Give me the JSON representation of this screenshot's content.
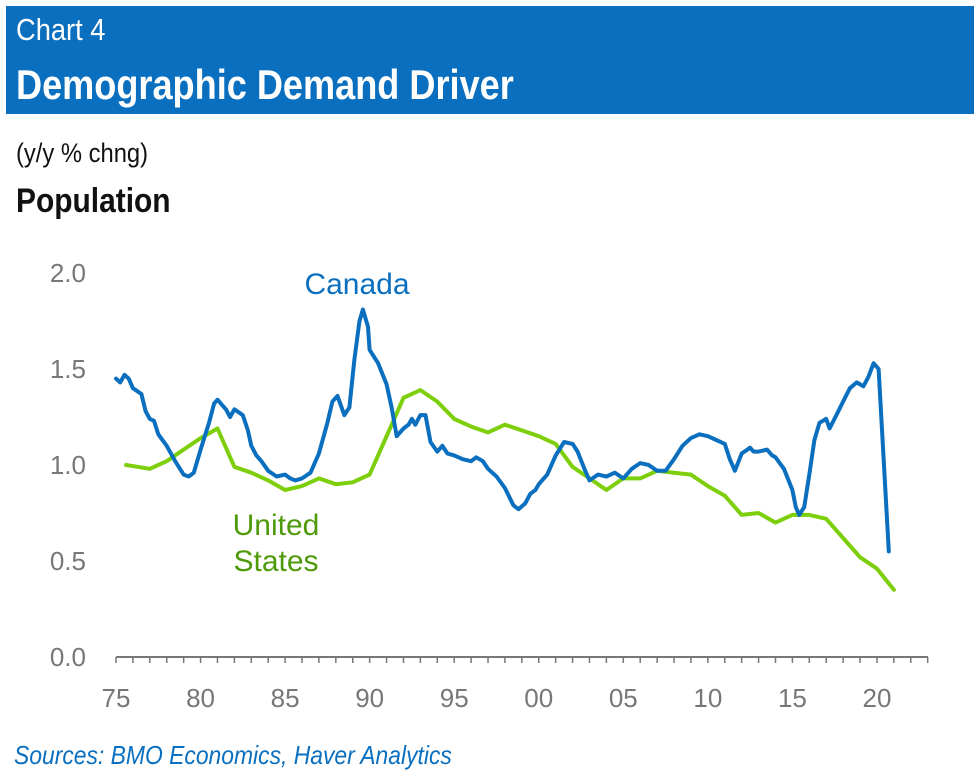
{
  "header": {
    "chart_number": "Chart 4",
    "title": "Demographic Demand Driver"
  },
  "units": "(y/y % chng)",
  "subtitle": "Population",
  "sources": "Sources: BMO Economics, Haver Analytics",
  "colors": {
    "header_bg": "#0a6fbf",
    "canada": "#0a6fbf",
    "united_states": "#7ccf0a",
    "us_label": "#4f9a0a"
  },
  "chart_data": {
    "type": "line",
    "title": "Population",
    "ylabel": "(y/y % chng)",
    "ylim": [
      0,
      2.0
    ],
    "xlim": [
      1975,
      2023
    ],
    "yticks": [
      "0.0",
      "0.5",
      "1.0",
      "1.5",
      "2.0"
    ],
    "xticks": [
      "75",
      "80",
      "85",
      "90",
      "95",
      "00",
      "05",
      "10",
      "15",
      "20"
    ],
    "xtick_years": [
      1975,
      1980,
      1985,
      1990,
      1995,
      2000,
      2005,
      2010,
      2015,
      2020
    ],
    "grid": false,
    "series": [
      {
        "name": "Canada",
        "label_lines": [
          "Canada"
        ],
        "x": [
          1975.0,
          1975.25,
          1975.5,
          1975.75,
          1976,
          1976.5,
          1976.75,
          1977,
          1977.25,
          1977.5,
          1978,
          1978.5,
          1979,
          1979.3,
          1979.6,
          1980,
          1980.5,
          1980.8,
          1981,
          1981.5,
          1981.75,
          1982,
          1982.5,
          1982.8,
          1983,
          1983.3,
          1983.6,
          1984,
          1984.5,
          1985,
          1985.3,
          1985.6,
          1986,
          1986.5,
          1987,
          1987.5,
          1987.8,
          1988.1,
          1988.5,
          1988.8,
          1989.1,
          1989.4,
          1989.6,
          1989.9,
          1990,
          1990.5,
          1991,
          1991.3,
          1991.6,
          1992,
          1992.3,
          1992.5,
          1992.7,
          1993,
          1993.3,
          1993.6,
          1994,
          1994.3,
          1994.6,
          1995,
          1995.5,
          1996,
          1996.3,
          1996.7,
          1997,
          1997.5,
          1998,
          1998.5,
          1998.8,
          1999.2,
          1999.5,
          1999.8,
          2000,
          2000.5,
          2001,
          2001.5,
          2002,
          2002.3,
          2002.7,
          2003,
          2003.5,
          2004,
          2004.5,
          2005,
          2005.5,
          2006,
          2006.5,
          2007,
          2007.5,
          2008,
          2008.5,
          2009,
          2009.5,
          2010,
          2010.5,
          2011,
          2011.3,
          2011.6,
          2012,
          2012.5,
          2012.7,
          2013,
          2013.5,
          2013.8,
          2014,
          2014.5,
          2015,
          2015.2,
          2015.4,
          2015.7,
          2016,
          2016.3,
          2016.6,
          2017,
          2017.2,
          2017.6,
          2018,
          2018.4,
          2018.8,
          2019.2,
          2019.5,
          2019.8,
          2020.1,
          2020.7
        ],
        "y": [
          1.45,
          1.43,
          1.47,
          1.45,
          1.4,
          1.37,
          1.28,
          1.24,
          1.23,
          1.16,
          1.1,
          1.02,
          0.95,
          0.94,
          0.96,
          1.08,
          1.22,
          1.32,
          1.34,
          1.29,
          1.25,
          1.29,
          1.26,
          1.18,
          1.1,
          1.05,
          1.02,
          0.97,
          0.94,
          0.95,
          0.93,
          0.92,
          0.93,
          0.96,
          1.06,
          1.22,
          1.33,
          1.36,
          1.26,
          1.3,
          1.55,
          1.75,
          1.81,
          1.72,
          1.6,
          1.53,
          1.42,
          1.3,
          1.15,
          1.19,
          1.21,
          1.24,
          1.21,
          1.26,
          1.26,
          1.12,
          1.07,
          1.1,
          1.06,
          1.05,
          1.03,
          1.02,
          1.04,
          1.02,
          0.98,
          0.94,
          0.88,
          0.79,
          0.77,
          0.8,
          0.85,
          0.87,
          0.9,
          0.95,
          1.05,
          1.12,
          1.11,
          1.07,
          0.98,
          0.92,
          0.95,
          0.94,
          0.96,
          0.93,
          0.98,
          1.01,
          1.0,
          0.97,
          0.97,
          1.03,
          1.1,
          1.14,
          1.16,
          1.15,
          1.13,
          1.11,
          1.03,
          0.97,
          1.06,
          1.09,
          1.07,
          1.07,
          1.08,
          1.05,
          1.04,
          0.98,
          0.87,
          0.78,
          0.74,
          0.78,
          0.95,
          1.13,
          1.22,
          1.24,
          1.19,
          1.26,
          1.33,
          1.4,
          1.43,
          1.41,
          1.46,
          1.53,
          1.5,
          0.55
        ]
      },
      {
        "name": "United States",
        "label_lines": [
          "United",
          "States"
        ],
        "x": [
          1975.6,
          1977,
          1978,
          1979,
          1980,
          1981,
          1982,
          1983,
          1984,
          1985,
          1986,
          1987,
          1988,
          1989,
          1990,
          1991,
          1992,
          1993,
          1994,
          1995,
          1996,
          1997,
          1998,
          1999,
          2000,
          2001,
          2002,
          2003,
          2004,
          2005,
          2006,
          2007,
          2008,
          2009,
          2010,
          2011,
          2012,
          2013,
          2014,
          2015,
          2016,
          2017,
          2018,
          2019,
          2020,
          2021
        ],
        "y": [
          1.0,
          0.98,
          1.02,
          1.08,
          1.14,
          1.19,
          0.99,
          0.96,
          0.92,
          0.87,
          0.89,
          0.93,
          0.9,
          0.91,
          0.95,
          1.15,
          1.35,
          1.39,
          1.33,
          1.24,
          1.2,
          1.17,
          1.21,
          1.18,
          1.15,
          1.11,
          0.99,
          0.93,
          0.87,
          0.93,
          0.93,
          0.97,
          0.96,
          0.95,
          0.89,
          0.84,
          0.74,
          0.75,
          0.7,
          0.74,
          0.74,
          0.72,
          0.62,
          0.52,
          0.46,
          0.35
        ]
      }
    ]
  }
}
